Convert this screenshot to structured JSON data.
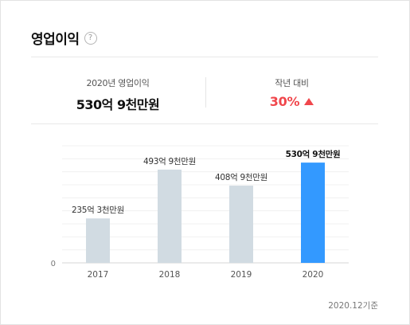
{
  "header": {
    "title": "영업이익",
    "help_icon": "question-circle-icon"
  },
  "summary": {
    "left_label": "2020년 영업이익",
    "left_value": "530억 9천만원",
    "right_label": "작년 대비",
    "right_value": "30%",
    "trend_icon": "triangle-up-icon",
    "trend_color": "#f0474c"
  },
  "chart_data": {
    "type": "bar",
    "categories": [
      "2017",
      "2018",
      "2019",
      "2020"
    ],
    "values": [
      235.3,
      493.9,
      408.9,
      530.9
    ],
    "value_labels": [
      "235억 3천만원",
      "493억 9천만원",
      "408억 9천만원",
      "530억 9천만원"
    ],
    "ylim": [
      0,
      620
    ],
    "y_ticks": [
      "0"
    ],
    "highlight_index": 3,
    "colors": {
      "bar": "#d1dbe2",
      "highlight": "#3399ff",
      "grid": "#f0f0f0"
    },
    "grid": true
  },
  "footnote": "2020.12기준"
}
